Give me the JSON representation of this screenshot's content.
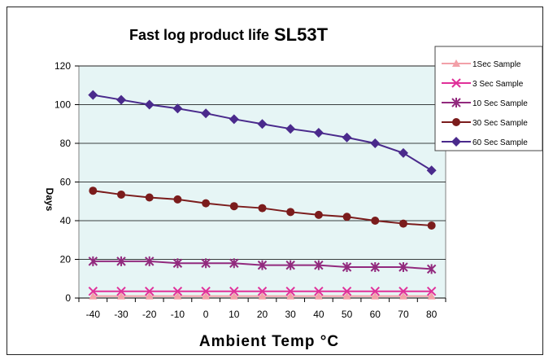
{
  "chart_data": {
    "type": "line",
    "title": "Fast log product life",
    "title_code": "SL53T",
    "xlabel": "Ambient Temp °C",
    "ylabel": "Days",
    "x": [
      -40,
      -30,
      -20,
      -10,
      0,
      10,
      20,
      30,
      40,
      50,
      60,
      70,
      80
    ],
    "xlim": [
      -40,
      80
    ],
    "ylim": [
      0,
      120
    ],
    "yticks": [
      0,
      20,
      40,
      60,
      80,
      100,
      120
    ],
    "grid": true,
    "plot_background": "#e6f5f5",
    "legend_position": "top-right",
    "series": [
      {
        "name": "1Sec Sample",
        "color": "#f2a0a8",
        "marker": "triangle",
        "values": [
          1,
          1,
          1,
          1,
          1,
          1,
          1,
          1,
          1,
          1,
          1,
          1,
          1
        ]
      },
      {
        "name": "3 Sec Sample",
        "color": "#e0309a",
        "marker": "x",
        "values": [
          3.5,
          3.5,
          3.5,
          3.5,
          3.5,
          3.5,
          3.5,
          3.5,
          3.5,
          3.5,
          3.5,
          3.5,
          3.5
        ]
      },
      {
        "name": "10 Sec Sample",
        "color": "#922a7e",
        "marker": "star",
        "values": [
          19,
          19,
          19,
          18,
          18,
          18,
          17,
          17,
          17,
          16,
          16,
          16,
          15
        ]
      },
      {
        "name": "30 Sec Sample",
        "color": "#7b1c1c",
        "marker": "circle",
        "values": [
          55.5,
          53.5,
          52,
          51,
          49,
          47.5,
          46.5,
          44.5,
          43,
          42,
          40,
          38.5,
          37.5
        ]
      },
      {
        "name": "60 Sec Sample",
        "color": "#4a2a8c",
        "marker": "diamond",
        "values": [
          105,
          102.5,
          100,
          98,
          95.5,
          92.5,
          90,
          87.5,
          85.5,
          83,
          80,
          75,
          66
        ]
      }
    ]
  }
}
